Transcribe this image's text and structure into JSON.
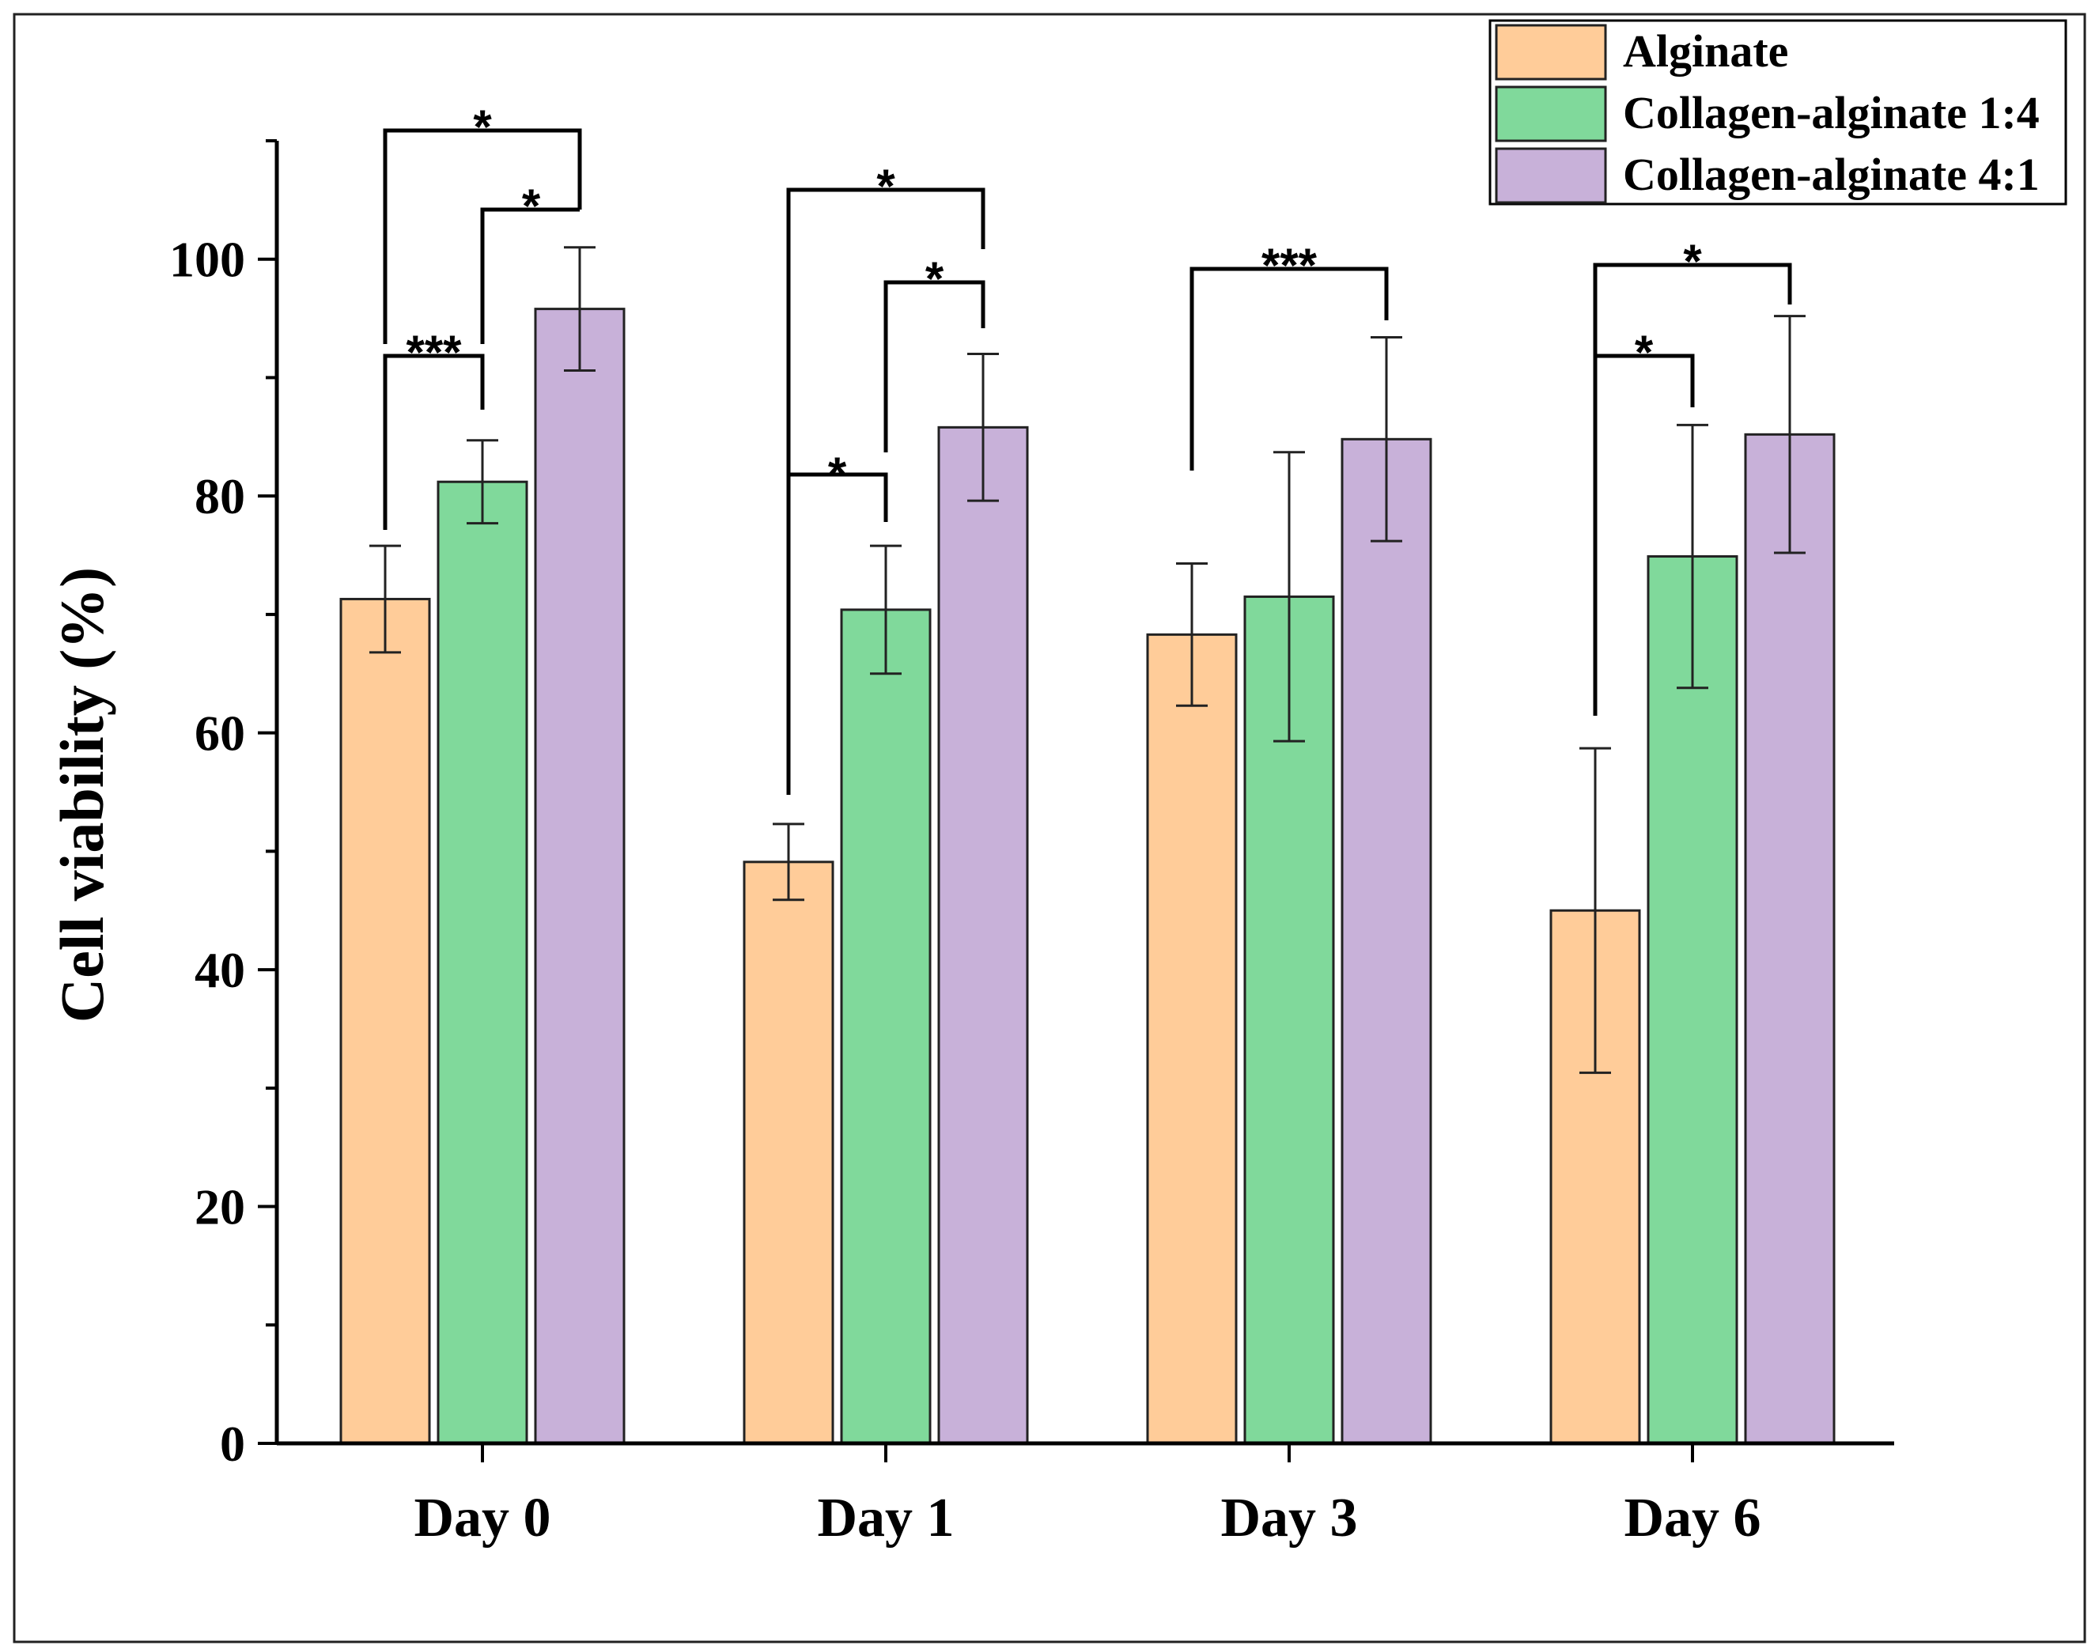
{
  "chart_data": {
    "type": "bar",
    "title": "",
    "xlabel": "",
    "ylabel": "Cell viability (%)",
    "ylim": [
      0,
      110
    ],
    "yticks": [
      0,
      20,
      40,
      60,
      80,
      100
    ],
    "grid": false,
    "legend_position": "top-right",
    "categories": [
      "Day 0",
      "Day 1",
      "Day 3",
      "Day 6"
    ],
    "series": [
      {
        "name": "Alginate",
        "color": "#ffcc99",
        "values": [
          71.3,
          49.1,
          68.3,
          45.0
        ],
        "errors": [
          4.5,
          3.2,
          6.0,
          13.7
        ]
      },
      {
        "name": "Collagen-alginate 1:4",
        "color": "#80d99b",
        "values": [
          81.2,
          70.4,
          71.5,
          74.9
        ],
        "errors": [
          3.5,
          5.4,
          12.2,
          11.1
        ]
      },
      {
        "name": "Collagen-alginate 4:1",
        "color": "#c8b1d9",
        "values": [
          95.8,
          85.8,
          84.8,
          85.2
        ],
        "errors": [
          5.2,
          6.2,
          8.6,
          10.0
        ]
      }
    ],
    "significance": [
      {
        "category": 0,
        "from_series": 0,
        "to_series": 1,
        "label": "***"
      },
      {
        "category": 0,
        "from_series": 1,
        "to_series": 2,
        "label": "*"
      },
      {
        "category": 0,
        "from_series": 0,
        "to_series": 2,
        "label": "*"
      },
      {
        "category": 1,
        "from_series": 0,
        "to_series": 1,
        "label": "*"
      },
      {
        "category": 1,
        "from_series": 1,
        "to_series": 2,
        "label": "*"
      },
      {
        "category": 1,
        "from_series": 0,
        "to_series": 2,
        "label": "*"
      },
      {
        "category": 2,
        "from_series": 0,
        "to_series": 2,
        "label": "***"
      },
      {
        "category": 3,
        "from_series": 0,
        "to_series": 1,
        "label": "*"
      },
      {
        "category": 3,
        "from_series": 0,
        "to_series": 2,
        "label": "*"
      }
    ]
  }
}
